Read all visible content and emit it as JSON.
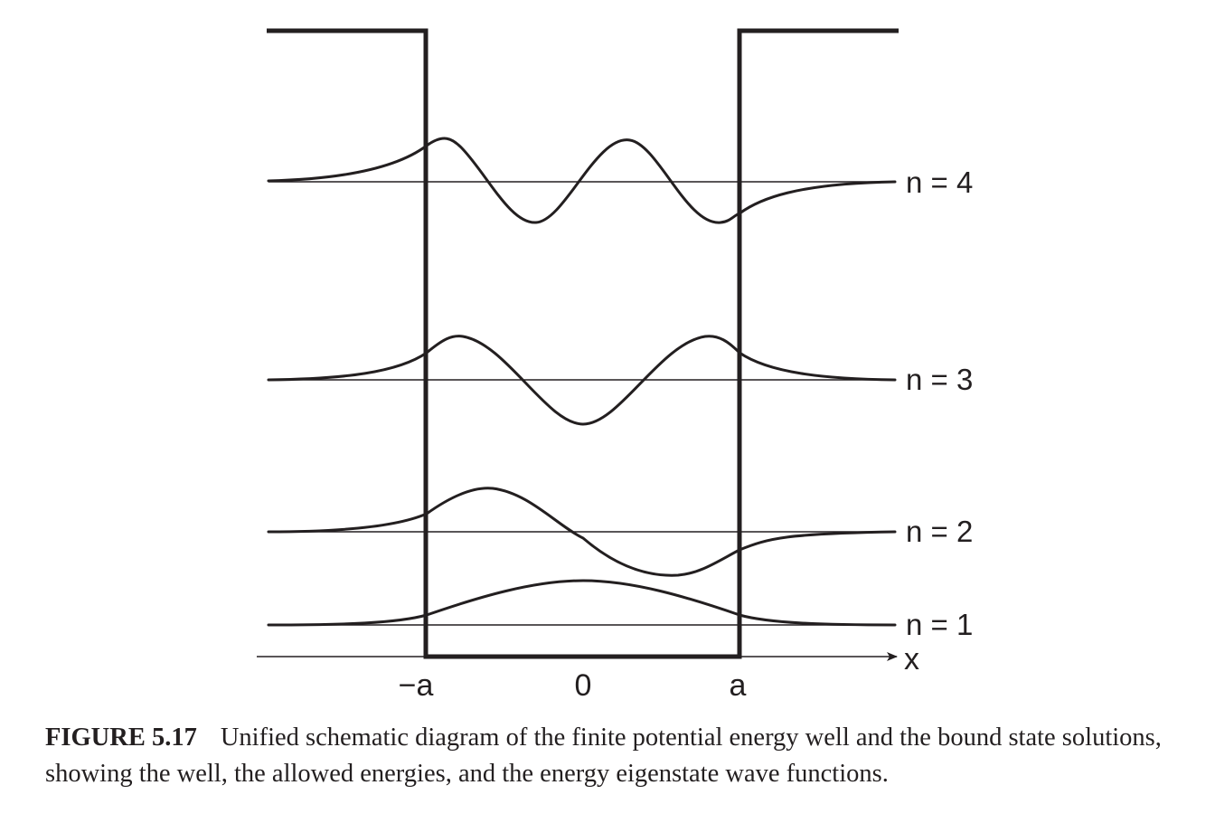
{
  "diagram": {
    "axis": {
      "x_label": "x",
      "ticks": [
        "−a",
        "0",
        "a"
      ]
    },
    "levels": [
      {
        "n": 4,
        "label": "n = 4"
      },
      {
        "n": 3,
        "label": "n = 3"
      },
      {
        "n": 2,
        "label": "n = 2"
      },
      {
        "n": 1,
        "label": "n = 1"
      }
    ]
  },
  "caption": {
    "figure_number": "FIGURE 5.17",
    "text": "Unified schematic diagram of the finite potential energy well and the bound state solutions, showing the well, the allowed energies, and the energy eigenstate wave functions."
  },
  "colors": {
    "ink": "#231f20"
  }
}
